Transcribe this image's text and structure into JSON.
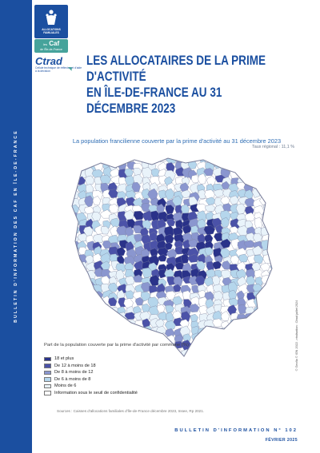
{
  "sidebar": {
    "text": "BULLETIN D'INFORMATION DES CAF EN ÎLE-DE-FRANCE"
  },
  "logo": {
    "label": "ALLOCATIONS FAMILIALES",
    "caf": "Caf",
    "caf_prefix": "les",
    "caf_sub": "de l'Île-de-France"
  },
  "ctrad": {
    "name": "Ctrad",
    "sub": "Cellule technique de réflexion et d'aide à la décision"
  },
  "title": {
    "line1": "LES ALLOCATAIRES DE LA PRIME D'ACTIVITÉ",
    "line2": "EN ÎLE-DE-FRANCE AU 31 DÉCEMBRE 2023"
  },
  "map": {
    "title": "La population francilienne couverte par la prime d'activité au 31 décembre 2023",
    "subtitle": "Taux régional : 11,1 %",
    "colors": {
      "c1": "#2a3289",
      "c2": "#4b52a8",
      "c3": "#8a96cf",
      "c4": "#b5d6ec",
      "c5": "#e9f3fa",
      "c6": "#ffffff",
      "outline": "#7a7f9c"
    }
  },
  "legend": {
    "title": "Part de la population couverte par la prime d'activité par commune (%)",
    "items": [
      {
        "label": "18 et plus",
        "color": "#2a3289"
      },
      {
        "label": "De 12 à moins de 18",
        "color": "#4b52a8"
      },
      {
        "label": "De 8 à moins de 12",
        "color": "#8a96cf"
      },
      {
        "label": "De 6 à moins de 8",
        "color": "#b5d6ec"
      },
      {
        "label": "Moins de 6",
        "color": "#e9f3fa"
      },
      {
        "label": "Information sous le seuil de confidentialité",
        "color": "#ffffff"
      }
    ]
  },
  "credit": "© Geofla © IGN 2022 - réalisation : Ctrad juillet 2024",
  "source": "Sources : Caisses d'allocations familiales d'Île-de-France décembre 2023, Insee, Rp 2021.",
  "footer": {
    "bulletin": "BULLETIN D'INFORMATION N° 102",
    "date": "FÉVRIER 2025"
  }
}
